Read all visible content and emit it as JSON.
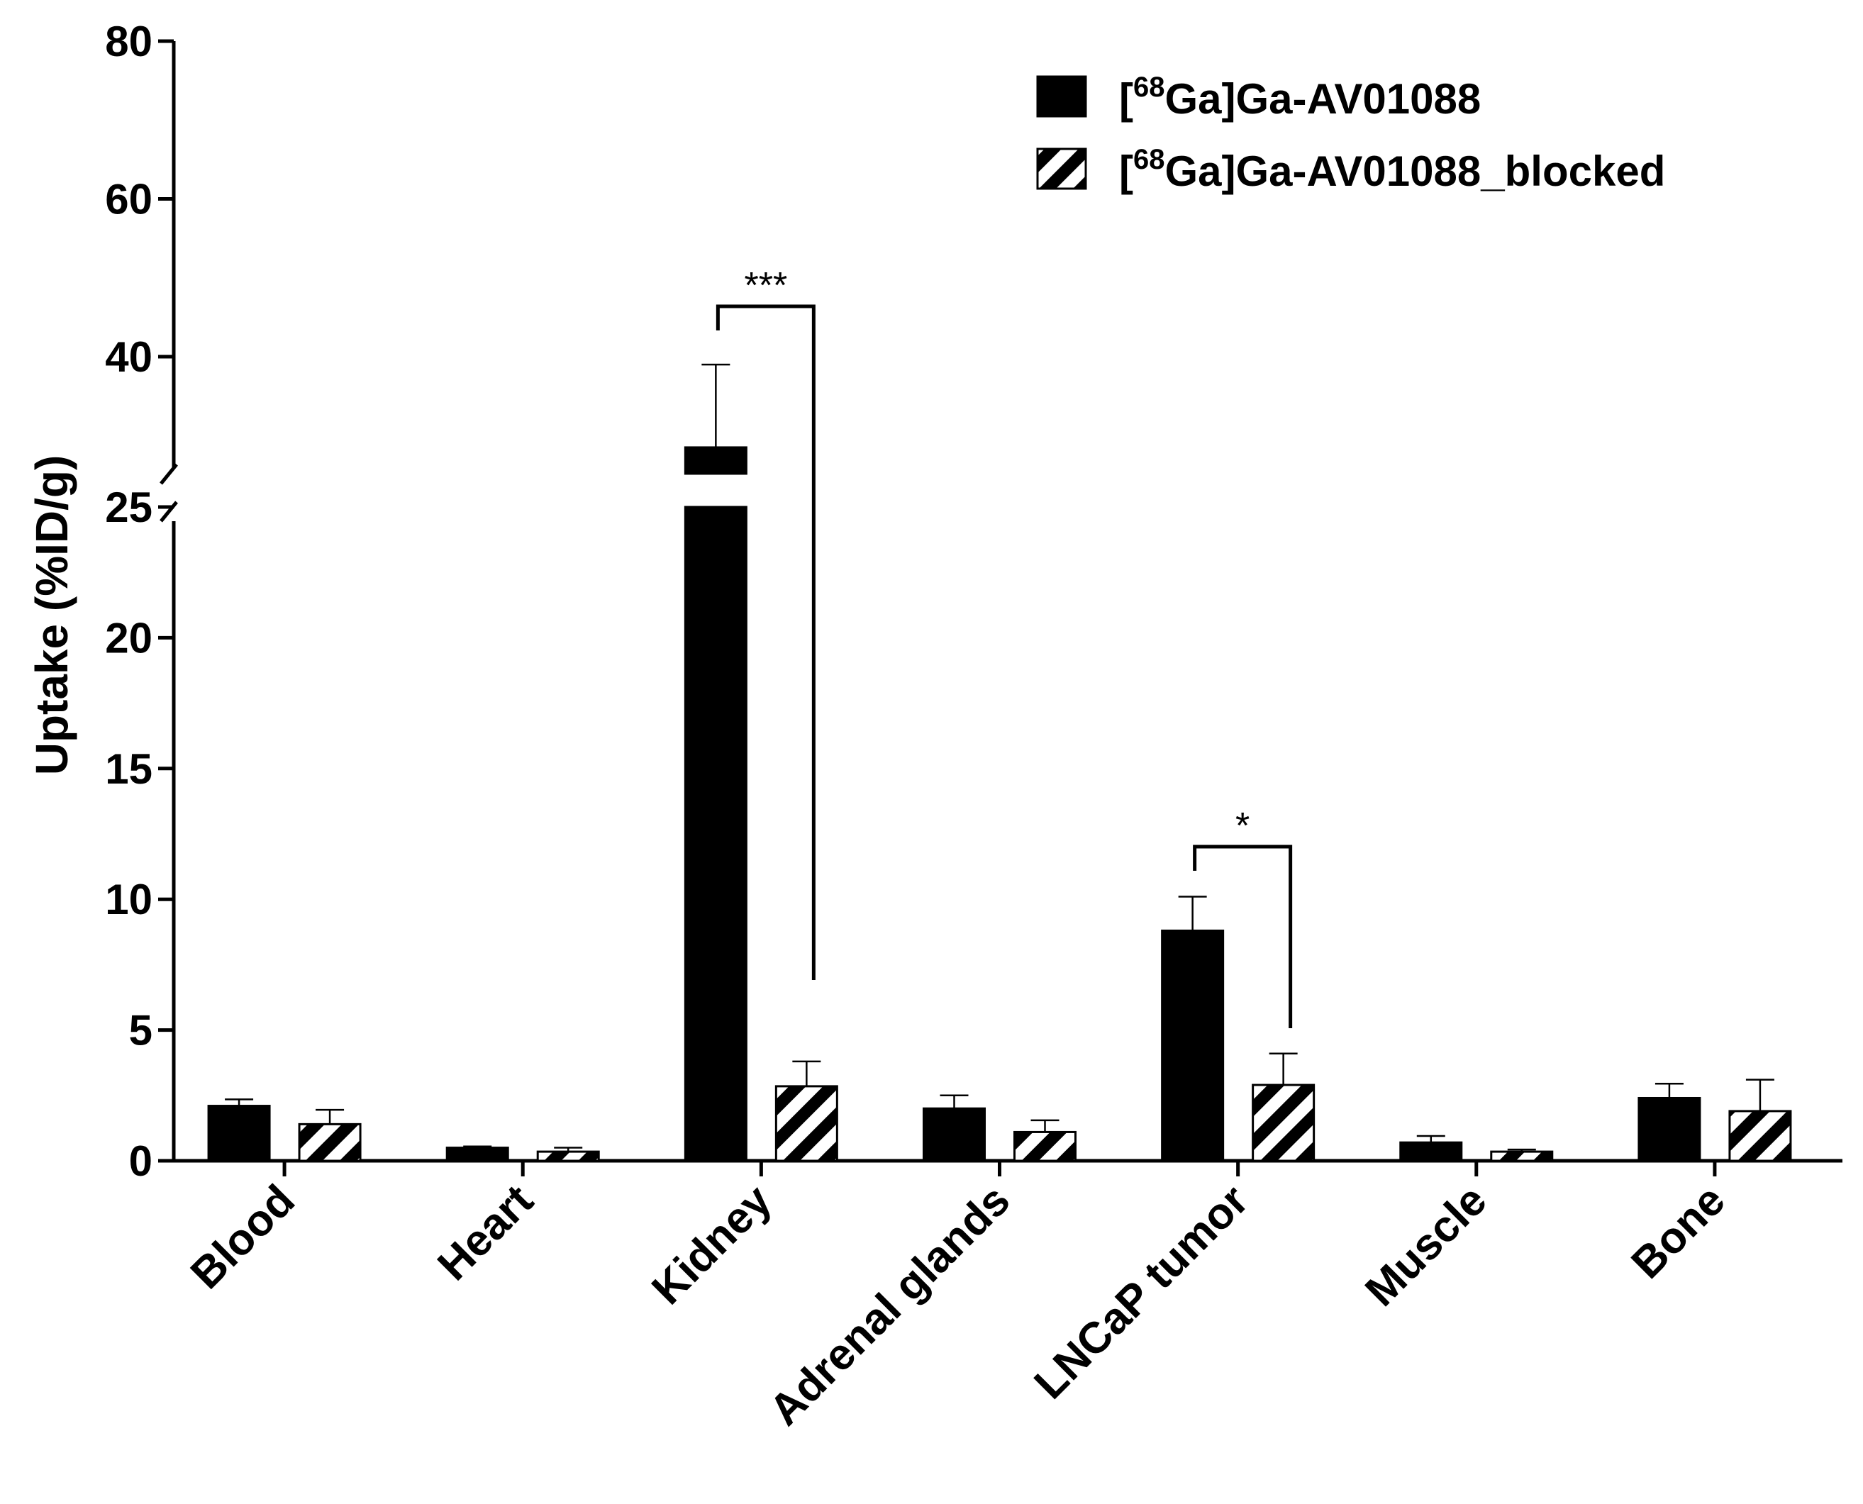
{
  "chart_data": {
    "type": "bar",
    "ylabel": "Uptake (%ID/g)",
    "categories": [
      "Blood",
      "Heart",
      "Kidney",
      "Adrenal glands",
      "LNCaP tumor",
      "Muscle",
      "Bone"
    ],
    "series": [
      {
        "name": "[68Ga]Ga-AV01088",
        "name_parts": [
          "[",
          "68",
          "Ga]Ga-AV01088"
        ],
        "pattern": "solid",
        "color": "#000000",
        "values": [
          2.1,
          0.5,
          28.5,
          2.0,
          8.8,
          0.7,
          2.4
        ],
        "errors": [
          0.25,
          0.05,
          10.5,
          0.5,
          1.3,
          0.25,
          0.55
        ]
      },
      {
        "name": "[68Ga]Ga-AV01088_blocked",
        "name_parts": [
          "[",
          "68",
          "Ga]Ga-AV01088_blocked"
        ],
        "pattern": "hatched",
        "color": "#000000",
        "values": [
          1.4,
          0.35,
          2.85,
          1.1,
          2.9,
          0.35,
          1.9
        ],
        "errors": [
          0.55,
          0.15,
          0.95,
          0.45,
          1.2,
          0.08,
          1.2
        ]
      }
    ],
    "yaxis": {
      "broken": true,
      "lower_segment": {
        "range": [
          0,
          25
        ],
        "ticks": [
          0,
          5,
          10,
          15,
          20,
          25
        ]
      },
      "upper_segment": {
        "range": [
          25,
          80
        ],
        "ticks": [
          40,
          60,
          80
        ]
      }
    },
    "significance": [
      {
        "category": "Kidney",
        "label": "***"
      },
      {
        "category": "LNCaP tumor",
        "label": "*"
      }
    ],
    "legend_position": "top-right",
    "grid": false
  }
}
